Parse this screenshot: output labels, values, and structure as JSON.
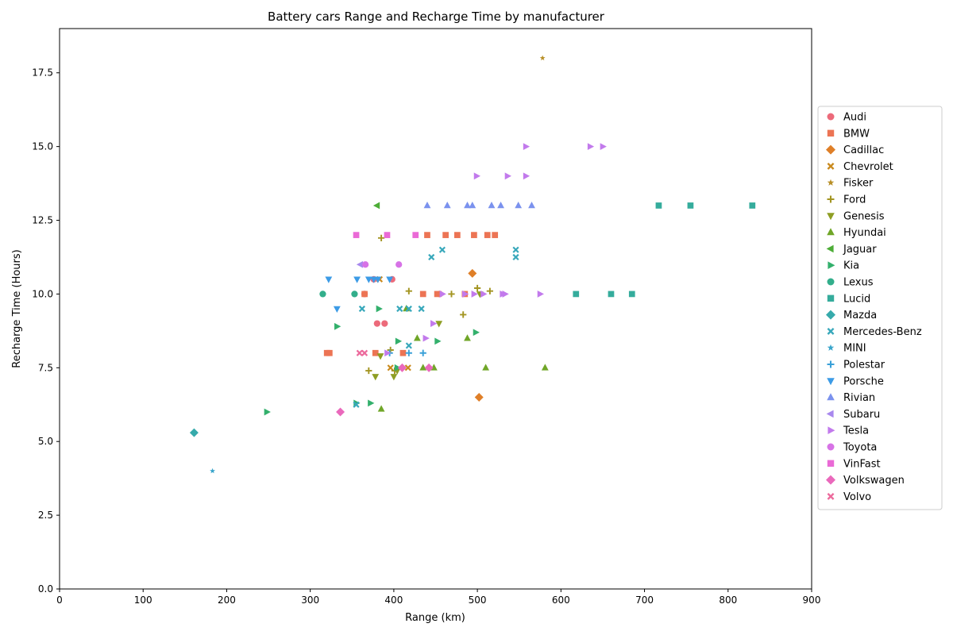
{
  "chart_data": {
    "type": "scatter",
    "title": "Battery cars Range and Recharge Time by manufacturer",
    "xlabel": "Range (km)",
    "ylabel": "Recharge Time (Hours)",
    "xlim": [
      0,
      900
    ],
    "ylim": [
      0,
      19
    ],
    "xticks": [
      "0",
      "100",
      "200",
      "300",
      "400",
      "500",
      "600",
      "700",
      "800",
      "900"
    ],
    "yticks": [
      "0.0",
      "2.5",
      "5.0",
      "7.5",
      "10.0",
      "12.5",
      "15.0",
      "17.5"
    ],
    "grid": false,
    "legend_position": "right",
    "series": [
      {
        "name": "Audi",
        "color": "#ec6a7a",
        "marker": "circle",
        "points": [
          [
            365,
            10
          ],
          [
            376,
            10.5
          ],
          [
            380,
            9
          ],
          [
            389,
            9
          ],
          [
            398,
            10.5
          ],
          [
            455,
            10
          ]
        ]
      },
      {
        "name": "BMW",
        "color": "#ec7454",
        "marker": "square",
        "points": [
          [
            320,
            8
          ],
          [
            323,
            8
          ],
          [
            365,
            10
          ],
          [
            378,
            8
          ],
          [
            411,
            8
          ],
          [
            435,
            10
          ],
          [
            440,
            12
          ],
          [
            452,
            10
          ],
          [
            462,
            12
          ],
          [
            476,
            12
          ],
          [
            496,
            12
          ],
          [
            512,
            12
          ],
          [
            521,
            12
          ],
          [
            485,
            10
          ]
        ]
      },
      {
        "name": "Cadillac",
        "color": "#df7f28",
        "marker": "diamond",
        "points": [
          [
            494,
            10.7
          ],
          [
            502,
            6.5
          ]
        ]
      },
      {
        "name": "Chevrolet",
        "color": "#c98a1e",
        "marker": "x",
        "points": [
          [
            396,
            7.5
          ],
          [
            417,
            7.5
          ],
          [
            383,
            10.5
          ]
        ]
      },
      {
        "name": "Fisker",
        "color": "#b88f27",
        "marker": "star",
        "points": [
          [
            578,
            18
          ]
        ]
      },
      {
        "name": "Ford",
        "color": "#a39522",
        "marker": "plus",
        "points": [
          [
            370,
            7.4
          ],
          [
            385,
            11.9
          ],
          [
            396,
            8.1
          ],
          [
            418,
            10.1
          ],
          [
            469,
            10
          ],
          [
            483,
            9.3
          ],
          [
            500,
            10.2
          ],
          [
            515,
            10.1
          ],
          [
            401,
            7.4
          ]
        ]
      },
      {
        "name": "Genesis",
        "color": "#8e9e24",
        "marker": "tri-down",
        "points": [
          [
            378,
            7.2
          ],
          [
            384,
            7.9
          ],
          [
            400,
            7.2
          ],
          [
            404,
            7.4
          ],
          [
            454,
            9
          ],
          [
            503,
            10
          ]
        ]
      },
      {
        "name": "Hyundai",
        "color": "#70a628",
        "marker": "tri-up",
        "points": [
          [
            385,
            6.1
          ],
          [
            415,
            9.5
          ],
          [
            428,
            8.5
          ],
          [
            435,
            7.5
          ],
          [
            488,
            8.5
          ],
          [
            510,
            7.5
          ],
          [
            581,
            7.5
          ],
          [
            448,
            7.5
          ]
        ]
      },
      {
        "name": "Jaguar",
        "color": "#4dad37",
        "marker": "tri-left",
        "points": [
          [
            380,
            13
          ]
        ]
      },
      {
        "name": "Kia",
        "color": "#33b06c",
        "marker": "tri-right",
        "points": [
          [
            248,
            6
          ],
          [
            332,
            8.9
          ],
          [
            355,
            6.3
          ],
          [
            372,
            6.3
          ],
          [
            382,
            9.5
          ],
          [
            405,
            8.4
          ],
          [
            452,
            8.4
          ],
          [
            498,
            8.7
          ],
          [
            404,
            7.5
          ]
        ]
      },
      {
        "name": "Lexus",
        "color": "#32ae8b",
        "marker": "circle",
        "points": [
          [
            315,
            10
          ],
          [
            353,
            10
          ]
        ]
      },
      {
        "name": "Lucid",
        "color": "#35ac9c",
        "marker": "square",
        "points": [
          [
            618,
            10
          ],
          [
            660,
            10
          ],
          [
            685,
            10
          ],
          [
            717,
            13
          ],
          [
            755,
            13
          ],
          [
            829,
            13
          ]
        ]
      },
      {
        "name": "Mazda",
        "color": "#36aaab",
        "marker": "diamond",
        "points": [
          [
            161,
            5.3
          ]
        ]
      },
      {
        "name": "Mercedes-Benz",
        "color": "#38a8bb",
        "marker": "x",
        "points": [
          [
            355,
            6.25
          ],
          [
            362,
            9.5
          ],
          [
            407,
            9.5
          ],
          [
            418,
            9.5
          ],
          [
            418,
            8.25
          ],
          [
            433,
            9.5
          ],
          [
            445,
            11.25
          ],
          [
            458,
            11.5
          ],
          [
            546,
            11.25
          ],
          [
            546,
            11.5
          ]
        ]
      },
      {
        "name": "MINI",
        "color": "#3aa5cb",
        "marker": "star",
        "points": [
          [
            183,
            4
          ]
        ]
      },
      {
        "name": "Polestar",
        "color": "#3aa0d8",
        "marker": "plus",
        "points": [
          [
            395,
            8
          ],
          [
            418,
            8
          ],
          [
            435,
            8
          ]
        ]
      },
      {
        "name": "Porsche",
        "color": "#3c9be6",
        "marker": "tri-down",
        "points": [
          [
            332,
            9.5
          ],
          [
            322,
            10.5
          ],
          [
            356,
            10.5
          ],
          [
            370,
            10.5
          ],
          [
            376,
            10.5
          ],
          [
            381,
            10.5
          ],
          [
            395,
            10.5
          ]
        ]
      },
      {
        "name": "Rivian",
        "color": "#7b92ee",
        "marker": "tri-up",
        "points": [
          [
            440,
            13
          ],
          [
            464,
            13
          ],
          [
            488,
            13
          ],
          [
            494,
            13
          ],
          [
            528,
            13
          ],
          [
            549,
            13
          ],
          [
            565,
            13
          ],
          [
            517,
            13
          ]
        ]
      },
      {
        "name": "Subaru",
        "color": "#a888ee",
        "marker": "tri-left",
        "points": [
          [
            360,
            11
          ]
        ]
      },
      {
        "name": "Tesla",
        "color": "#c27aec",
        "marker": "tri-right",
        "points": [
          [
            392,
            8
          ],
          [
            438,
            8.5
          ],
          [
            447,
            9
          ],
          [
            458,
            10
          ],
          [
            485,
            10
          ],
          [
            496,
            10
          ],
          [
            499,
            14
          ],
          [
            507,
            10
          ],
          [
            530,
            10
          ],
          [
            536,
            14
          ],
          [
            558,
            14
          ],
          [
            558,
            15
          ],
          [
            575,
            10
          ],
          [
            635,
            15
          ],
          [
            650,
            15
          ],
          [
            533,
            10
          ]
        ]
      },
      {
        "name": "Toyota",
        "color": "#d773e6",
        "marker": "circle",
        "points": [
          [
            366,
            11
          ],
          [
            406,
            11
          ]
        ]
      },
      {
        "name": "VinFast",
        "color": "#ea6ad6",
        "marker": "square",
        "points": [
          [
            355,
            12
          ],
          [
            392,
            12
          ],
          [
            426,
            12
          ]
        ]
      },
      {
        "name": "Volkswagen",
        "color": "#ea69bc",
        "marker": "diamond",
        "points": [
          [
            336,
            6
          ],
          [
            410,
            7.5
          ],
          [
            442,
            7.5
          ]
        ]
      },
      {
        "name": "Volvo",
        "color": "#ec6a9c",
        "marker": "x",
        "points": [
          [
            359,
            8
          ],
          [
            365,
            8
          ]
        ]
      }
    ]
  }
}
